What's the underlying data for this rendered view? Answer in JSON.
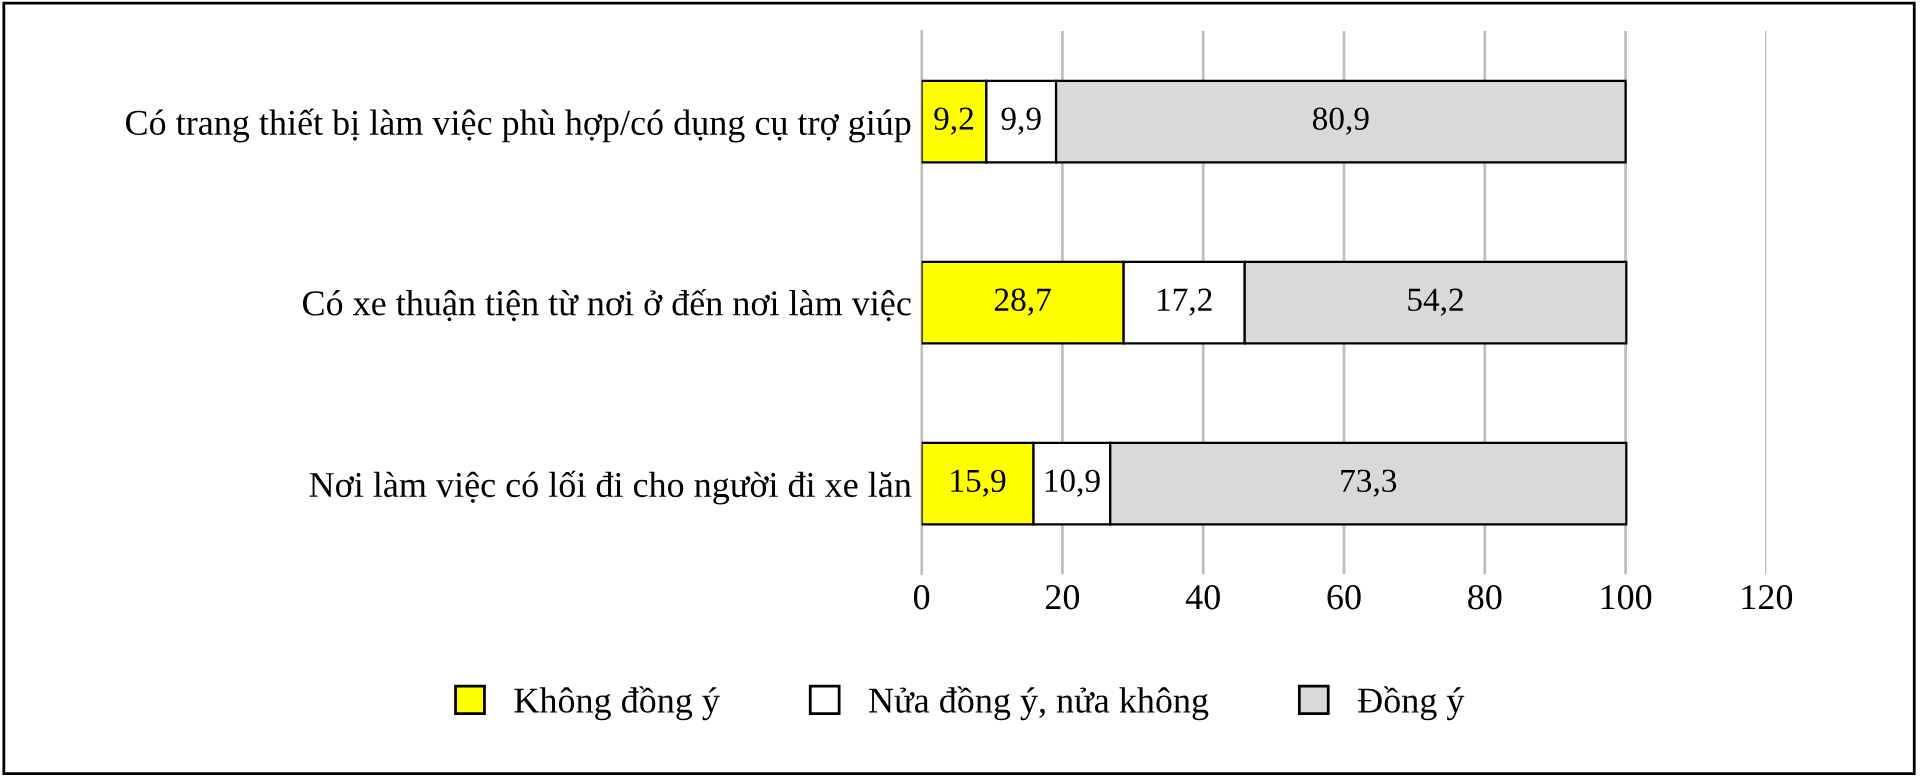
{
  "chart_data": {
    "type": "bar",
    "orientation": "horizontal",
    "stacked": true,
    "categories": [
      "Có trang thiết bị làm việc phù hợp/có dụng cụ trợ giúp",
      "Có xe thuận tiện từ nơi ở đến nơi làm việc",
      "Nơi làm việc có lối đi cho người đi xe lăn"
    ],
    "series": [
      {
        "name": "Không đồng ý",
        "color": "#ffff00",
        "values": [
          9.2,
          28.7,
          15.9
        ],
        "value_labels": [
          "9,2",
          "28,7",
          "15,9"
        ]
      },
      {
        "name": "Nửa đồng ý, nửa không",
        "color": "#ffffff",
        "values": [
          9.9,
          17.2,
          10.9
        ],
        "value_labels": [
          "9,9",
          "17,2",
          "10,9"
        ]
      },
      {
        "name": "Đồng ý",
        "color": "#d9d9d9",
        "values": [
          80.9,
          54.2,
          73.3
        ],
        "value_labels": [
          "80,9",
          "54,2",
          "73,3"
        ]
      }
    ],
    "xlim": [
      0,
      120
    ],
    "xticks": [
      0,
      20,
      40,
      60,
      80,
      100,
      120
    ],
    "grid": "x",
    "legend": "bottom"
  }
}
